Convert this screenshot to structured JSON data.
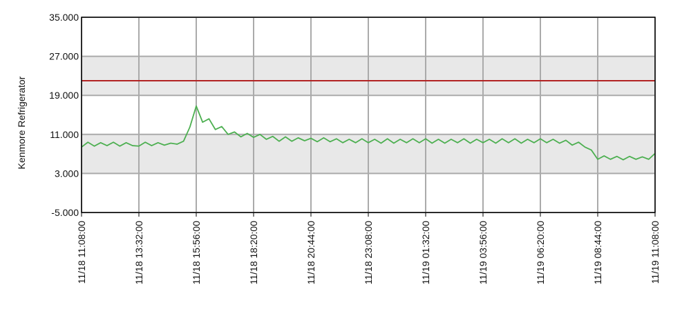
{
  "chart_data": {
    "type": "line",
    "y_label": "Kenmore Refrigerator",
    "x": [
      "11/18 11:08:00",
      "11/18 11:24:00",
      "11/18 11:40:00",
      "11/18 11:56:00",
      "11/18 12:12:00",
      "11/18 12:28:00",
      "11/18 12:44:00",
      "11/18 13:00:00",
      "11/18 13:16:00",
      "11/18 13:32:00",
      "11/18 13:48:00",
      "11/18 14:04:00",
      "11/18 14:20:00",
      "11/18 14:36:00",
      "11/18 14:52:00",
      "11/18 15:08:00",
      "11/18 15:24:00",
      "11/18 15:40:00",
      "11/18 15:56:00",
      "11/18 16:12:00",
      "11/18 16:28:00",
      "11/18 16:44:00",
      "11/18 17:00:00",
      "11/18 17:16:00",
      "11/18 17:32:00",
      "11/18 17:48:00",
      "11/18 18:04:00",
      "11/18 18:20:00",
      "11/18 18:36:00",
      "11/18 18:52:00",
      "11/18 19:08:00",
      "11/18 19:24:00",
      "11/18 19:40:00",
      "11/18 19:56:00",
      "11/18 20:12:00",
      "11/18 20:28:00",
      "11/18 20:44:00",
      "11/18 21:00:00",
      "11/18 21:16:00",
      "11/18 21:32:00",
      "11/18 21:48:00",
      "11/18 22:04:00",
      "11/18 22:20:00",
      "11/18 22:36:00",
      "11/18 22:52:00",
      "11/18 23:08:00",
      "11/18 23:24:00",
      "11/18 23:40:00",
      "11/18 23:56:00",
      "11/19 00:12:00",
      "11/19 00:28:00",
      "11/19 00:44:00",
      "11/19 01:00:00",
      "11/19 01:16:00",
      "11/19 01:32:00",
      "11/19 01:48:00",
      "11/19 02:04:00",
      "11/19 02:20:00",
      "11/19 02:36:00",
      "11/19 02:52:00",
      "11/19 03:08:00",
      "11/19 03:24:00",
      "11/19 03:40:00",
      "11/19 03:56:00",
      "11/19 04:12:00",
      "11/19 04:28:00",
      "11/19 04:44:00",
      "11/19 05:00:00",
      "11/19 05:16:00",
      "11/19 05:32:00",
      "11/19 05:48:00",
      "11/19 06:04:00",
      "11/19 06:20:00",
      "11/19 06:36:00",
      "11/19 06:52:00",
      "11/19 07:08:00",
      "11/19 07:24:00",
      "11/19 07:40:00",
      "11/19 07:56:00",
      "11/19 08:12:00",
      "11/19 08:28:00",
      "11/19 08:44:00",
      "11/19 09:00:00",
      "11/19 09:16:00",
      "11/19 09:32:00",
      "11/19 09:48:00",
      "11/19 10:04:00",
      "11/19 10:20:00",
      "11/19 10:36:00",
      "11/19 10:52:00",
      "11/19 11:08:00"
    ],
    "series": [
      {
        "color": "#4caf50",
        "values": [
          8.4,
          9.4,
          8.6,
          9.3,
          8.7,
          9.4,
          8.6,
          9.3,
          8.7,
          8.6,
          9.4,
          8.7,
          9.3,
          8.8,
          9.2,
          9.0,
          9.6,
          12.5,
          16.8,
          13.5,
          14.2,
          12.0,
          12.6,
          11.0,
          11.5,
          10.5,
          11.2,
          10.4,
          11.0,
          10.0,
          10.6,
          9.6,
          10.5,
          9.6,
          10.3,
          9.7,
          10.2,
          9.5,
          10.3,
          9.5,
          10.1,
          9.3,
          10.0,
          9.3,
          10.1,
          9.3,
          10.0,
          9.2,
          10.1,
          9.2,
          10.0,
          9.3,
          10.1,
          9.3,
          10.1,
          9.2,
          10.0,
          9.2,
          10.0,
          9.3,
          10.1,
          9.2,
          10.0,
          9.3,
          10.0,
          9.2,
          10.1,
          9.3,
          10.1,
          9.2,
          10.0,
          9.3,
          10.1,
          9.3,
          10.0,
          9.2,
          9.8,
          8.8,
          9.4,
          8.4,
          7.8,
          5.9,
          6.6,
          5.9,
          6.5,
          5.8,
          6.5,
          5.9,
          6.4,
          5.9,
          7.1
        ]
      }
    ],
    "threshold": {
      "value": 22,
      "color": "#b22222"
    },
    "band_color": "#e8e8e8",
    "grid": true,
    "xlim": [
      "11/18 11:08:00",
      "11/19 11:08:00"
    ],
    "xticks": [
      "11/18 11:08:00",
      "11/18 13:32:00",
      "11/18 15:56:00",
      "11/18 18:20:00",
      "11/18 20:44:00",
      "11/18 23:08:00",
      "11/19 01:32:00",
      "11/19 03:56:00",
      "11/19 06:20:00",
      "11/19 08:44:00",
      "11/19 11:08:00"
    ],
    "ylim": [
      -5,
      35
    ],
    "yticks": [
      {
        "value": -5,
        "label": "-5.000"
      },
      {
        "value": 3,
        "label": "3.000"
      },
      {
        "value": 11,
        "label": "11.000"
      },
      {
        "value": 19,
        "label": "19.000"
      },
      {
        "value": 27,
        "label": "27.000"
      },
      {
        "value": 35,
        "label": "35.000"
      }
    ]
  }
}
